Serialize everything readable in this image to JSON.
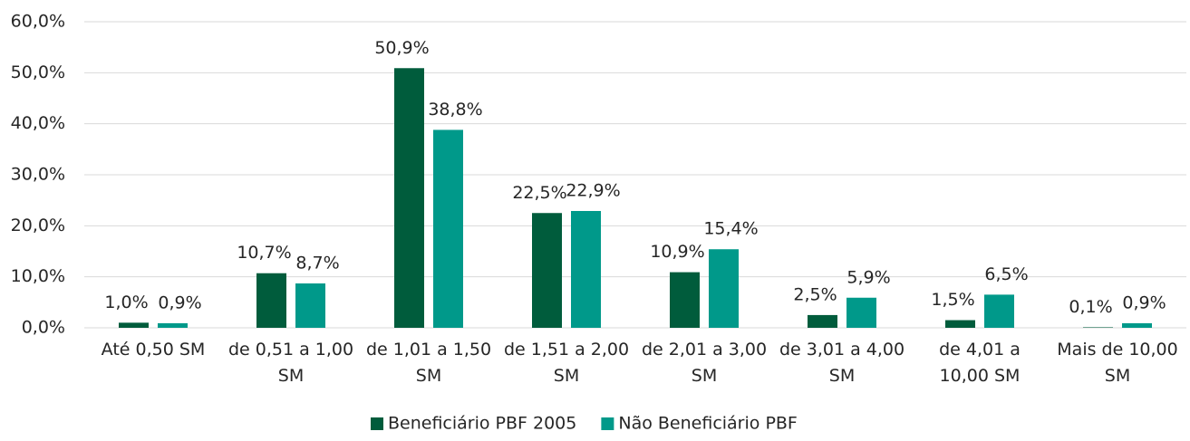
{
  "chart_data": {
    "type": "bar",
    "categories": [
      "Até 0,50 SM",
      "de 0,51 a 1,00 SM",
      "de 1,01 a 1,50 SM",
      "de 1,51 a 2,00 SM",
      "de 2,01 a 3,00 SM",
      "de 3,01 a 4,00 SM",
      "de 4,01 a 10,00 SM",
      "Mais de 10,00 SM"
    ],
    "series": [
      {
        "name": "Beneficiário PBF 2005",
        "color": "#005c3c",
        "values": [
          1.0,
          10.7,
          50.9,
          22.5,
          10.9,
          2.5,
          1.5,
          0.1
        ],
        "value_labels": [
          "1,0%",
          "10,7%",
          "50,9%",
          "22,5%",
          "10,9%",
          "2,5%",
          "1,5%",
          "0,1%"
        ]
      },
      {
        "name": "Não Beneficiário PBF",
        "color": "#00998a",
        "values": [
          0.9,
          8.7,
          38.8,
          22.9,
          15.4,
          5.9,
          6.5,
          0.9
        ],
        "value_labels": [
          "0,9%",
          "8,7%",
          "38,8%",
          "22,9%",
          "15,4%",
          "5,9%",
          "6,5%",
          "0,9%"
        ]
      }
    ],
    "ylim": [
      0,
      60
    ],
    "yticks": [
      {
        "value": 0,
        "label": "0,0%"
      },
      {
        "value": 10,
        "label": "10,0%"
      },
      {
        "value": 20,
        "label": "20,0%"
      },
      {
        "value": 30,
        "label": "30,0%"
      },
      {
        "value": 40,
        "label": "40,0%"
      },
      {
        "value": 50,
        "label": "50,0%"
      },
      {
        "value": 60,
        "label": "60,0%"
      }
    ],
    "grid": true,
    "legend": "bottom"
  }
}
